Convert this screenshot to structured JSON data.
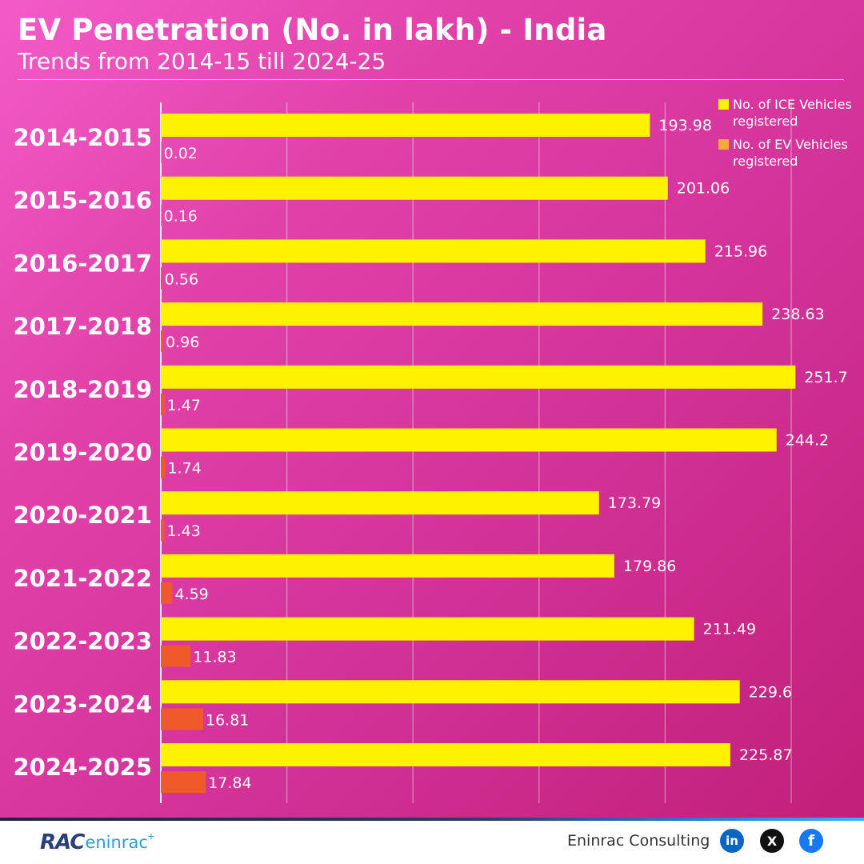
{
  "header": {
    "title": "EV Penetration (No. in lakh) - India",
    "subtitle": "Trends from 2014-15 till 2024-25"
  },
  "legend": {
    "ice_label": "No. of ICE Vehicles registered",
    "ev_label": "No. of EV Vehicles registered"
  },
  "colors": {
    "ice": "#fff200",
    "ev": "#f05a2a",
    "ev_legend": "#f7a937",
    "grid": "rgba(255,255,255,0.35)",
    "axis": "rgba(255,255,255,0.9)"
  },
  "chart_data": {
    "type": "bar",
    "orientation": "horizontal",
    "categories": [
      "2014-2015",
      "2015-2016",
      "2016-2017",
      "2017-2018",
      "2018-2019",
      "2019-2020",
      "2020-2021",
      "2021-2022",
      "2022-2023",
      "2023-2024",
      "2024-2025"
    ],
    "series": [
      {
        "name": "No. of ICE Vehicles registered",
        "values": [
          193.98,
          201.06,
          215.96,
          238.63,
          251.7,
          244.2,
          173.79,
          179.86,
          211.49,
          229.6,
          225.87
        ]
      },
      {
        "name": "No. of EV Vehicles registered",
        "values": [
          0.02,
          0.16,
          0.56,
          0.96,
          1.47,
          1.74,
          1.43,
          4.59,
          11.83,
          16.81,
          17.84
        ]
      }
    ],
    "value_labels": {
      "ice": [
        "193.98",
        "201.06",
        "215.96",
        "238.63",
        "251.7",
        "244.2",
        "173.79",
        "179.86",
        "211.49",
        "229.6",
        "225.87"
      ],
      "ev": [
        "0.02",
        "0.16",
        "0.56",
        "0.96",
        "1.47",
        "1.74",
        "1.43",
        "4.59",
        "11.83",
        "16.81",
        "17.84"
      ]
    },
    "xlim": [
      0,
      280
    ],
    "grid": true,
    "legend_position": "top-right"
  },
  "footer": {
    "logo_mark": "RAC",
    "logo_text": "eninrac",
    "company": "Eninrac Consulting",
    "social": [
      {
        "icon": "linkedin-icon",
        "glyph": "in",
        "color": "#0a66c2"
      },
      {
        "icon": "x-icon",
        "glyph": "X",
        "color": "#111111"
      },
      {
        "icon": "facebook-icon",
        "glyph": "f",
        "color": "#1877f2"
      }
    ]
  }
}
